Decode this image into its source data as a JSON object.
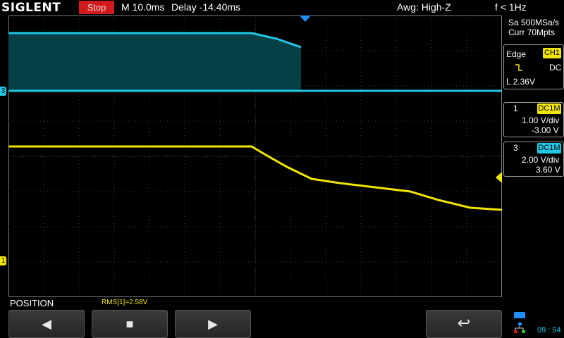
{
  "topbar": {
    "brand": "SIGLENT",
    "run_state": "Stop",
    "timebase": "M 10.0ms",
    "delay": "Delay -14.40ms",
    "acquisition": "Awg: High-Z",
    "trigger_frequency": "f < 1Hz"
  },
  "acquire": {
    "sample_rate": "Sa 500MSa/s",
    "memory_depth": "Curr 70Mpts"
  },
  "trigger": {
    "type": "Edge",
    "source": "CH1",
    "slope_icon": "falling-edge-icon",
    "coupling": "DC",
    "level": "L  2.36V"
  },
  "channels": [
    {
      "number": "1",
      "coupling": "DC1M",
      "scale": "1.00 V/div",
      "offset": "-3.00 V",
      "color": "#f1e600"
    },
    {
      "number": "3",
      "coupling": "DC1M",
      "scale": "2.00 V/div",
      "offset": "3.60 V",
      "color": "#1ec8e6"
    }
  ],
  "markers": {
    "ch1": "1",
    "ch3": "3"
  },
  "bottom": {
    "menu_title": "POSITION",
    "measurement": "RMS[1]=2.58V",
    "softkeys": [
      "◀",
      "■",
      "▶",
      "↩"
    ],
    "clock": "09 : 54"
  },
  "colors": {
    "ch1": "#f1e600",
    "ch3": "#1ec8e6",
    "stop": "#d11a1a"
  }
}
